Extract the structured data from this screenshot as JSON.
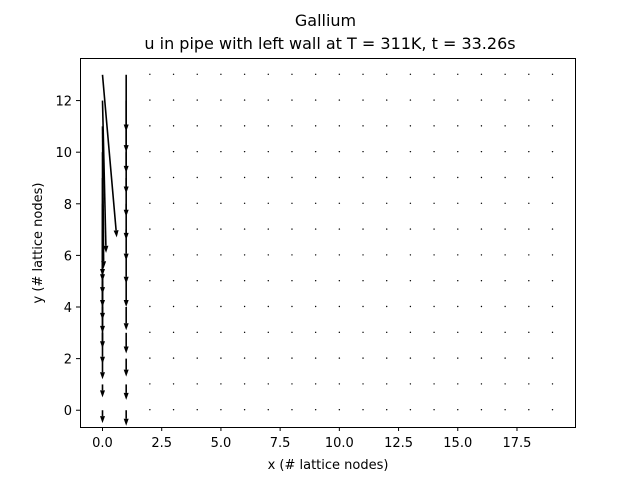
{
  "chart_data": {
    "type": "quiver",
    "title": "Gallium",
    "subtitle": "u in pipe with left wall at T = 311K, t = 33.26s",
    "xlabel": "x (# lattice nodes)",
    "ylabel": "y (# lattice nodes)",
    "xlim": [
      -0.95,
      19.95
    ],
    "ylim": [
      -0.65,
      13.65
    ],
    "xticks": [
      0.0,
      2.5,
      5.0,
      7.5,
      10.0,
      12.5,
      15.0,
      17.5
    ],
    "xtick_labels": [
      "0.0",
      "2.5",
      "5.0",
      "7.5",
      "10.0",
      "12.5",
      "15.0",
      "17.5"
    ],
    "yticks": [
      0,
      2,
      4,
      6,
      8,
      10,
      12
    ],
    "ytick_labels": [
      "0",
      "2",
      "4",
      "6",
      "8",
      "10",
      "12"
    ],
    "grid": false,
    "legend": "none",
    "arrow_color": "#000000",
    "columns_x": [
      0,
      1
    ],
    "grid_x": [
      2,
      19
    ],
    "grid_y": [
      0,
      13
    ],
    "vectors": [
      {
        "x": 0,
        "y": 13,
        "u": 0.6,
        "v": -6.3
      },
      {
        "x": 0,
        "y": 12,
        "u": 0.15,
        "v": -5.9
      },
      {
        "x": 0,
        "y": 11,
        "u": 0.05,
        "v": -5.5
      },
      {
        "x": 0,
        "y": 10,
        "u": 0.0,
        "v": -4.8
      },
      {
        "x": 0,
        "y": 9,
        "u": 0.0,
        "v": -4.0
      },
      {
        "x": 0,
        "y": 8,
        "u": 0.0,
        "v": -3.5
      },
      {
        "x": 0,
        "y": 7,
        "u": 0.0,
        "v": -3.0
      },
      {
        "x": 0,
        "y": 6,
        "u": 0.0,
        "v": -2.5
      },
      {
        "x": 0,
        "y": 5,
        "u": 0.0,
        "v": -2.0
      },
      {
        "x": 0,
        "y": 4,
        "u": 0.0,
        "v": -1.6
      },
      {
        "x": 0,
        "y": 3,
        "u": 0.0,
        "v": -1.2
      },
      {
        "x": 0,
        "y": 2,
        "u": 0.0,
        "v": -0.8
      },
      {
        "x": 0,
        "y": 1,
        "u": 0.0,
        "v": -0.5
      },
      {
        "x": 0,
        "y": 0,
        "u": 0.0,
        "v": -0.5
      },
      {
        "x": 1,
        "y": 13,
        "u": 0.0,
        "v": -2.2
      },
      {
        "x": 1,
        "y": 12,
        "u": 0.0,
        "v": -2.0
      },
      {
        "x": 1,
        "y": 11,
        "u": 0.0,
        "v": -1.8
      },
      {
        "x": 1,
        "y": 10,
        "u": 0.0,
        "v": -1.6
      },
      {
        "x": 1,
        "y": 9,
        "u": 0.0,
        "v": -1.5
      },
      {
        "x": 1,
        "y": 8,
        "u": 0.0,
        "v": -1.4
      },
      {
        "x": 1,
        "y": 7,
        "u": 0.0,
        "v": -1.2
      },
      {
        "x": 1,
        "y": 6,
        "u": 0.0,
        "v": -1.1
      },
      {
        "x": 1,
        "y": 5,
        "u": 0.0,
        "v": -1.0
      },
      {
        "x": 1,
        "y": 4,
        "u": 0.0,
        "v": -0.9
      },
      {
        "x": 1,
        "y": 3,
        "u": 0.0,
        "v": -0.8
      },
      {
        "x": 1,
        "y": 2,
        "u": 0.0,
        "v": -0.7
      },
      {
        "x": 1,
        "y": 1,
        "u": 0.0,
        "v": -0.6
      },
      {
        "x": 1,
        "y": 0,
        "u": 0.0,
        "v": -0.6
      }
    ]
  }
}
